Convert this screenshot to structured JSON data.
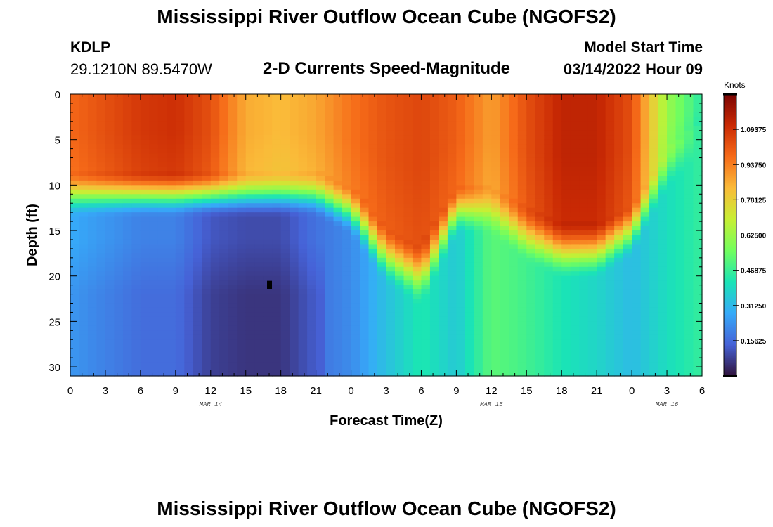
{
  "page": {
    "title": "Mississippi River Outflow Ocean Cube (NGOFS2)",
    "title_repeat": "Mississippi River Outflow Ocean Cube (NGOFS2)",
    "station": "KDLP",
    "coords": "29.1210N  89.5470W",
    "subtitle": "2-D Currents Speed-Magnitude",
    "model_start_label": "Model Start Time",
    "model_start_value": "03/14/2022 Hour 09"
  },
  "chart_data": {
    "type": "heatmap",
    "title": "2-D Currents Speed-Magnitude",
    "xlabel": "Forecast Time(Z)",
    "ylabel": "Depth (ft)",
    "xlim": [
      0,
      54
    ],
    "ylim": [
      0,
      31
    ],
    "y_inverted": true,
    "x_ticks": [
      0,
      3,
      6,
      9,
      12,
      15,
      18,
      21,
      24,
      27,
      30,
      33,
      36,
      39,
      42,
      45,
      48,
      51,
      54
    ],
    "x_tick_labels": [
      "0",
      "3",
      "6",
      "9",
      "12",
      "15",
      "18",
      "21",
      "0",
      "3",
      "6",
      "9",
      "12",
      "15",
      "18",
      "21",
      "0",
      "3",
      "6"
    ],
    "date_labels": [
      {
        "text": "MAR 14",
        "x": 12
      },
      {
        "text": "MAR 15",
        "x": 36
      },
      {
        "text": "MAR 16",
        "x": 51
      }
    ],
    "y_ticks": [
      0,
      5,
      10,
      15,
      20,
      25,
      30
    ],
    "y_tick_labels": [
      "0",
      "5",
      "10",
      "15",
      "20",
      "25",
      "30"
    ],
    "colorbar": {
      "unit": "Knots",
      "min": 0.0,
      "max": 1.25,
      "tick_values": [
        0.15625,
        0.3125,
        0.46875,
        0.625,
        0.78125,
        0.9375,
        1.09375
      ],
      "tick_labels": [
        "0.15625",
        "0.31250",
        "0.46875",
        "0.62500",
        "0.78125",
        "0.93750",
        "1.09375"
      ],
      "colors": [
        "#30123b",
        "#4662d7",
        "#36aaf9",
        "#1ae4b6",
        "#72fe5e",
        "#c7ef34",
        "#fabb39",
        "#f66b19",
        "#ca2a04",
        "#7a0403"
      ]
    },
    "grid": false,
    "speed_field": {
      "description": "surface layer 0-8 ft; deep layer 13-31 ft",
      "times": [
        0,
        3,
        6,
        9,
        12,
        15,
        18,
        21,
        24,
        27,
        30,
        33,
        36,
        39,
        42,
        45,
        48,
        51,
        54
      ],
      "surface_speed": [
        0.98,
        1.03,
        1.08,
        1.1,
        1.03,
        0.86,
        0.83,
        0.87,
        0.96,
        1.02,
        1.05,
        1.0,
        0.88,
        1.03,
        1.13,
        1.13,
        1.03,
        0.62,
        0.44
      ],
      "surface_depth_ft": [
        8.5,
        8.5,
        8.5,
        8.5,
        8.5,
        8.5,
        8.5,
        8.5,
        10,
        14.5,
        16.5,
        10,
        10,
        12.5,
        14,
        14,
        12,
        6,
        3
      ],
      "deep_speed": [
        0.28,
        0.24,
        0.2,
        0.2,
        0.12,
        0.1,
        0.1,
        0.17,
        0.22,
        0.33,
        0.43,
        0.35,
        0.52,
        0.48,
        0.42,
        0.38,
        0.32,
        0.4,
        0.46
      ]
    },
    "marker": {
      "x": 17,
      "y": 21
    }
  }
}
